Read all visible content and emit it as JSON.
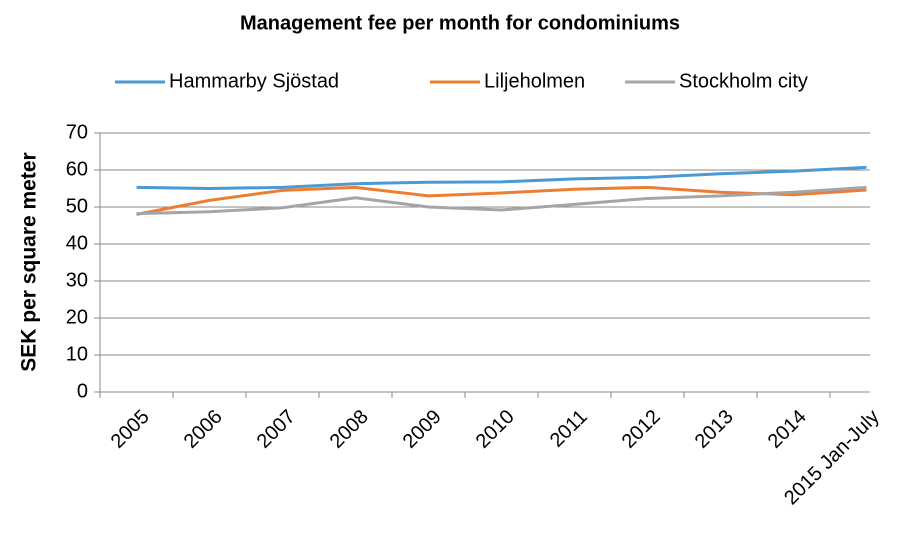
{
  "chart_data": {
    "type": "line",
    "title": "Management fee per month for condominiums",
    "y_label": "SEK per square meter",
    "categories": [
      "2005",
      "2006",
      "2007",
      "2008",
      "2009",
      "2010",
      "2011",
      "2012",
      "2013",
      "2014",
      "2015 Jan-July"
    ],
    "series": [
      {
        "name": "Hammarby Sjöstad",
        "color": "#4a9ad4",
        "values": [
          55.3,
          55.0,
          55.3,
          56.3,
          56.7,
          56.8,
          57.6,
          58.0,
          59.0,
          59.7,
          60.7
        ]
      },
      {
        "name": "Liljeholmen",
        "color": "#ed7d31",
        "values": [
          48.0,
          51.8,
          54.5,
          55.3,
          53.0,
          53.8,
          54.8,
          55.3,
          54.0,
          53.3,
          54.6
        ]
      },
      {
        "name": "Stockholm city",
        "color": "#a5a5a5",
        "values": [
          48.2,
          48.7,
          49.8,
          52.5,
          50.0,
          49.2,
          50.7,
          52.3,
          53.0,
          54.0,
          55.3
        ]
      }
    ],
    "ylim": [
      0,
      70
    ],
    "yticks": [
      0,
      10,
      20,
      30,
      40,
      50,
      60,
      70
    ],
    "grid": true,
    "legend": "top"
  }
}
